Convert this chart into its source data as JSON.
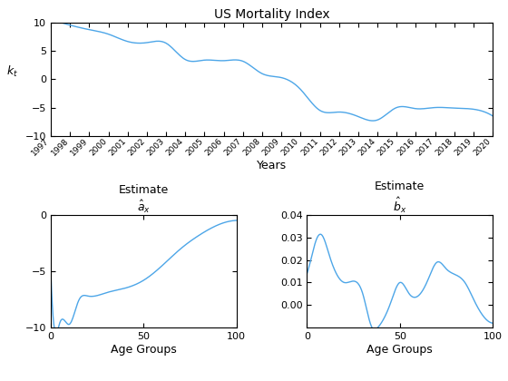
{
  "title1": "US Mortality Index",
  "xlabel1": "Years",
  "ylabel1": "$k_t$",
  "years": [
    1997,
    1998,
    1999,
    2000,
    2001,
    2002,
    2003,
    2004,
    2005,
    2006,
    2007,
    2008,
    2009,
    2010,
    2011,
    2012,
    2013,
    2014,
    2015,
    2016,
    2017,
    2018,
    2019,
    2020
  ],
  "kt": [
    10.6,
    9.6,
    8.8,
    8.0,
    6.7,
    6.5,
    6.4,
    3.5,
    3.4,
    3.3,
    3.2,
    1.0,
    0.3,
    -1.8,
    -5.5,
    -5.8,
    -6.6,
    -7.2,
    -5.0,
    -5.2,
    -5.0,
    -5.1,
    -5.3,
    -6.5
  ],
  "xlabel2": "Age Groups",
  "title2_line1": "Estimate",
  "title2_line2": "$\\hat{a}_x$",
  "ax_knots_x": [
    0,
    1,
    5,
    10,
    15,
    20,
    30,
    40,
    50,
    60,
    70,
    80,
    90,
    100
  ],
  "ax_knots_y": [
    -5.0,
    -8.5,
    -9.5,
    -9.7,
    -7.6,
    -7.2,
    -6.9,
    -6.5,
    -5.8,
    -4.5,
    -3.0,
    -1.8,
    -0.9,
    -0.5
  ],
  "xlabel3": "Age Groups",
  "title3_line1": "Estimate",
  "title3_line2": "$\\hat{b}_x$",
  "bx_knots_x": [
    0,
    2,
    5,
    8,
    12,
    20,
    30,
    35,
    38,
    45,
    50,
    55,
    65,
    70,
    75,
    85,
    90,
    95,
    100
  ],
  "bx_knots_y": [
    0.014,
    0.02,
    0.029,
    0.031,
    0.022,
    0.01,
    0.005,
    -0.01,
    -0.01,
    0.001,
    0.01,
    0.005,
    0.011,
    0.019,
    0.016,
    0.01,
    0.002,
    -0.005,
    -0.008
  ],
  "line_color": "#4DA6E8",
  "ylim1": [
    -10,
    10
  ],
  "ylim2": [
    -10,
    0
  ],
  "ylim3": [
    -0.01,
    0.04
  ],
  "bg_color": "#FFFFFF"
}
